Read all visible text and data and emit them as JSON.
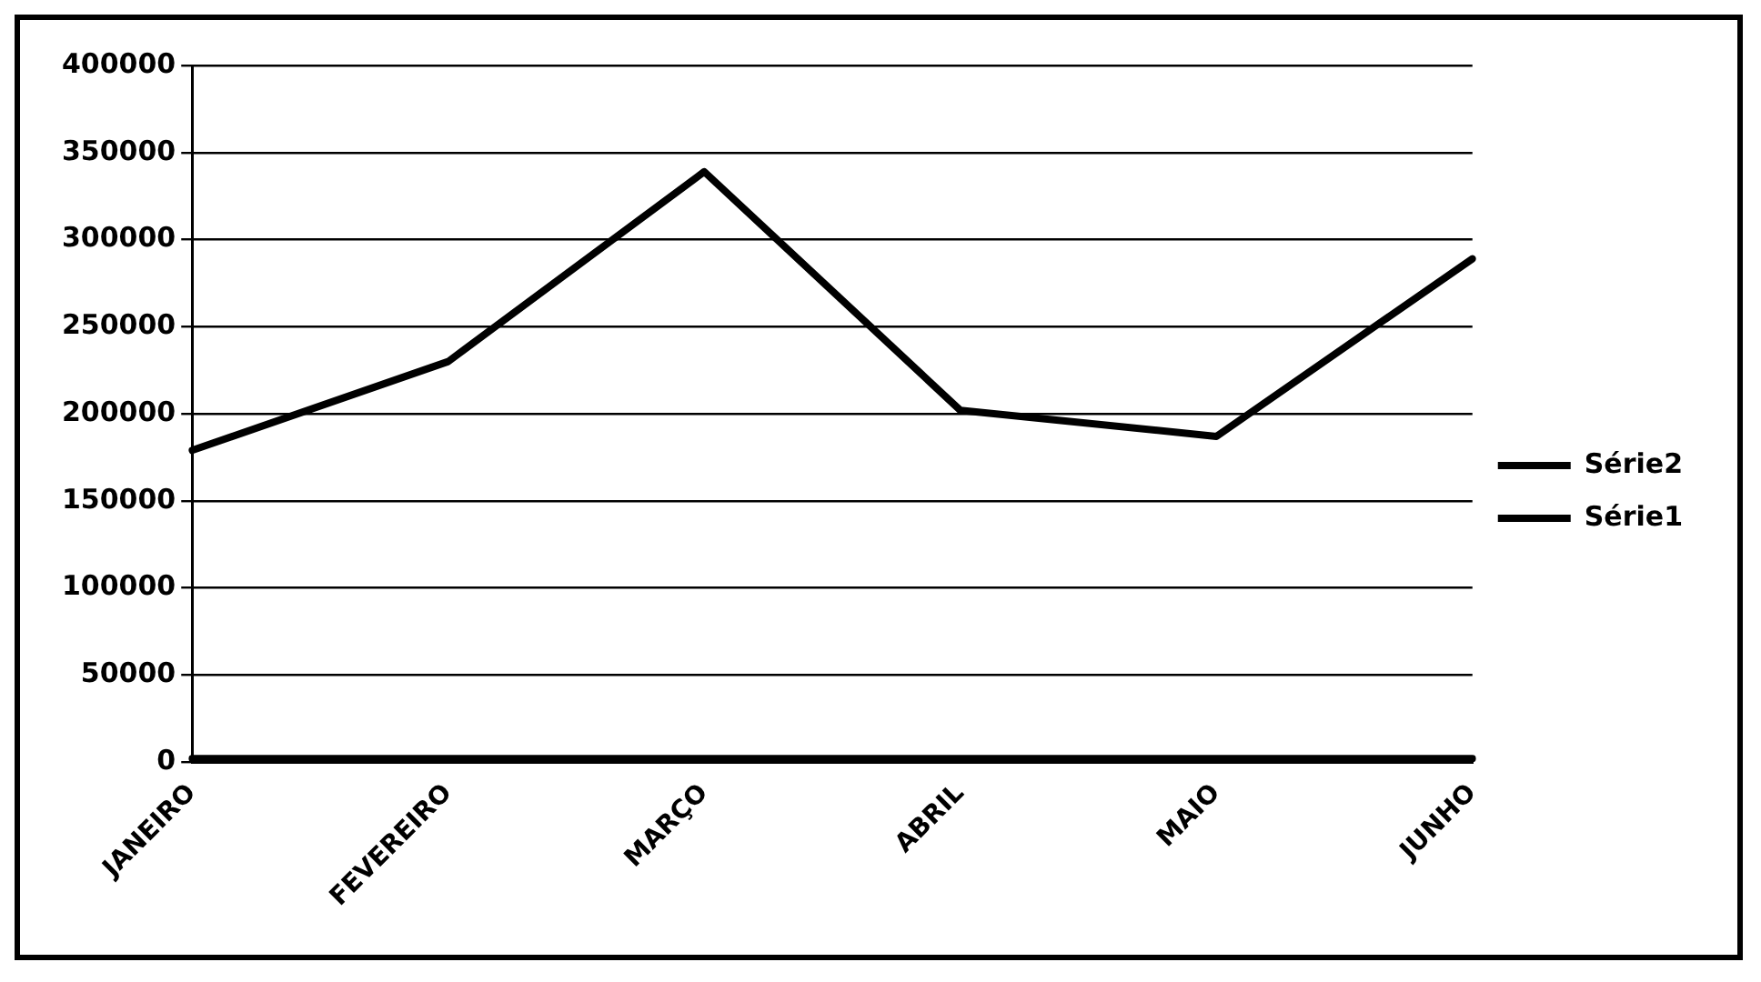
{
  "chart_data": {
    "type": "line",
    "categories": [
      "JANEIRO",
      "FEVEREIRO",
      "MARÇO",
      "ABRIL",
      "MAIO",
      "JUNHO"
    ],
    "series": [
      {
        "name": "Série2",
        "color": "#000000",
        "values": [
          179000,
          230000,
          339000,
          202000,
          187000,
          289000
        ]
      },
      {
        "name": "Série1",
        "color": "#000000",
        "values": [
          2000,
          2000,
          2000,
          2000,
          2000,
          2000
        ]
      }
    ],
    "ylim": [
      0,
      400000
    ],
    "yticks": [
      0,
      50000,
      100000,
      150000,
      200000,
      250000,
      300000,
      350000,
      400000
    ],
    "grid": "y",
    "legend": "right",
    "marker": "none",
    "line_style": "solid"
  }
}
